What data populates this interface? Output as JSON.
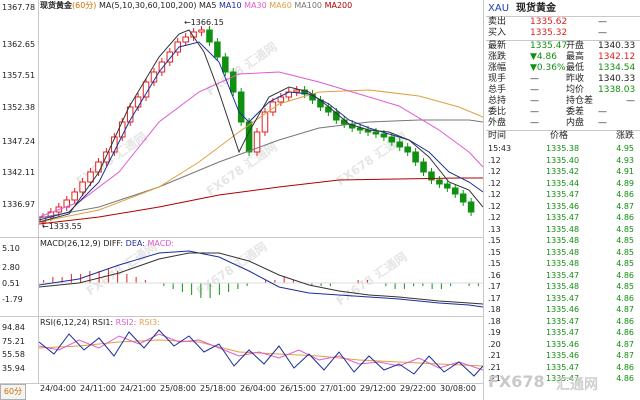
{
  "chart_header": {
    "symbol": "现货黄金",
    "period_tag": "(60分)",
    "ma_params": "MA(5,10,30,60,100,200)",
    "ma5": "MA5",
    "ma10": "MA10",
    "ma30": "MA30",
    "ma60": "MA60",
    "ma100": "MA100",
    "ma200": "MA200"
  },
  "price_axis": [
    "1367.78",
    "1362.65",
    "1357.51",
    "1352.38",
    "1347.24",
    "1342.11",
    "1336.97"
  ],
  "high_annotation": "1366.15",
  "low_annotation": "1333.55",
  "macd_header": "MACD(26,12,9)",
  "macd_diff": "DIFF:",
  "macd_dea": "DEA:",
  "macd_macd": "MACD:",
  "macd_axis": [
    "5.10",
    "2.80",
    "0.51",
    "-1.79"
  ],
  "rsi_header": "RSI(6,12,24)",
  "rsi1": "RSI1:",
  "rsi2": "RSI2:",
  "rsi3": "RSI3:",
  "rsi_axis": [
    "94.84",
    "75.21",
    "55.58",
    "35.94"
  ],
  "time_axis": [
    "24/04:00",
    "24/11:00",
    "24/21:00",
    "25/08:00",
    "25/18:00",
    "26/04:00",
    "26/15:00",
    "27/01:00",
    "29/12:00",
    "29/22:00",
    "30/08:00"
  ],
  "period_button": "60分",
  "watermark": "FX678 汇通网",
  "corner_logo": "FX678",
  "corner_logo_cn": "汇通网",
  "quote": {
    "code": "XAU",
    "name": "现货黄金",
    "sell_label": "卖出",
    "sell": "1335.62",
    "sell_extra": "—",
    "buy_label": "买入",
    "buy": "1335.32",
    "buy_extra": "—",
    "last_label": "最新",
    "last": "1335.47",
    "open_label": "开盘",
    "open": "1340.33",
    "change_label": "涨跌",
    "change": "▼4.86",
    "high_label": "最高",
    "high": "1342.12",
    "pct_label": "涨幅",
    "pct": "▼0.36%",
    "low_label": "最低",
    "low": "1334.54",
    "hand_label": "现手",
    "hand": "—",
    "prev_label": "昨收",
    "prev": "1340.33",
    "total_label": "总手",
    "total": "—",
    "avg_label": "均价",
    "avg": "1338.03",
    "oi_label": "总持",
    "oi": "—",
    "oichg_label": "持仓差",
    "oichg": "—",
    "ratio_label": "委比",
    "ratio": "—",
    "diff_label": "委差",
    "diff": "—",
    "out_label": "外盘",
    "out": "—",
    "in_label": "内盘",
    "in": "—"
  },
  "ticks_header": {
    "time": "时间",
    "price": "价格",
    "chg": "涨跌"
  },
  "ticks": [
    {
      "t": "15:43",
      "p": "1335.38",
      "v": "4.95"
    },
    {
      "t": ".12",
      "p": "1335.40",
      "v": "4.93"
    },
    {
      "t": ".12",
      "p": "1335.42",
      "v": "4.91"
    },
    {
      "t": ".12",
      "p": "1335.44",
      "v": "4.89"
    },
    {
      "t": ".12",
      "p": "1335.47",
      "v": "4.86"
    },
    {
      "t": ".12",
      "p": "1335.46",
      "v": "4.87"
    },
    {
      "t": ".12",
      "p": "1335.47",
      "v": "4.86"
    },
    {
      "t": ".13",
      "p": "1335.48",
      "v": "4.85"
    },
    {
      "t": ".15",
      "p": "1335.48",
      "v": "4.85"
    },
    {
      "t": ".15",
      "p": "1335.48",
      "v": "4.85"
    },
    {
      "t": ".15",
      "p": "1335.48",
      "v": "4.85"
    },
    {
      "t": ".16",
      "p": "1335.47",
      "v": "4.86"
    },
    {
      "t": ".17",
      "p": "1335.48",
      "v": "4.85"
    },
    {
      "t": ".17",
      "p": "1335.47",
      "v": "4.86"
    },
    {
      "t": ".18",
      "p": "1335.46",
      "v": "4.87"
    },
    {
      "t": ".18",
      "p": "1335.47",
      "v": "4.86"
    },
    {
      "t": ".19",
      "p": "1335.47",
      "v": "4.86"
    },
    {
      "t": ".20",
      "p": "1335.46",
      "v": "4.87"
    },
    {
      "t": ".21",
      "p": "1335.46",
      "v": "4.87"
    },
    {
      "t": ".21",
      "p": "1335.47",
      "v": "4.86"
    },
    {
      "t": ".21",
      "p": "1335.47",
      "v": "4.86"
    }
  ],
  "colors": {
    "up": "#e02020",
    "down": "#109010",
    "ma5": "#333333",
    "ma10": "#1a2f9a",
    "ma30": "#e05ad0",
    "ma60": "#e0a040",
    "ma100": "#777777",
    "ma200": "#b00000"
  }
}
